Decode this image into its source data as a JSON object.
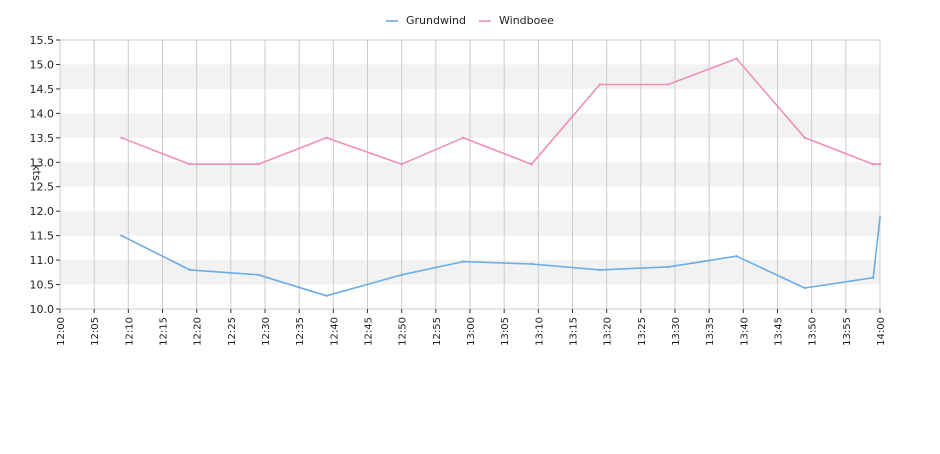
{
  "chart_data": {
    "type": "line",
    "ylabel": "kts",
    "xlabel": "",
    "title": "",
    "legend_position": "top-center",
    "grid": true,
    "ylim": [
      10.0,
      15.5
    ],
    "xlim": [
      "12:00",
      "14:00"
    ],
    "x_ticks": [
      "12:00",
      "12:05",
      "12:10",
      "12:15",
      "12:20",
      "12:25",
      "12:30",
      "12:35",
      "12:40",
      "12:45",
      "12:50",
      "12:55",
      "13:00",
      "13:05",
      "13:10",
      "13:15",
      "13:20",
      "13:25",
      "13:30",
      "13:35",
      "13:40",
      "13:45",
      "13:50",
      "13:55",
      "14:00"
    ],
    "y_ticks": [
      "10.0",
      "10.5",
      "11.0",
      "11.5",
      "12.0",
      "12.5",
      "13.0",
      "13.5",
      "14.0",
      "14.5",
      "15.0",
      "15.5"
    ],
    "band_color": "#f2f2f2",
    "grid_color": "#cccccc",
    "series": [
      {
        "name": "Grundwind",
        "color": "#6aaee8",
        "points": [
          [
            "12:09",
            11.5
          ],
          [
            "12:19",
            10.8
          ],
          [
            "12:29",
            10.7
          ],
          [
            "12:39",
            10.27
          ],
          [
            "12:50",
            10.7
          ],
          [
            "12:59",
            10.97
          ],
          [
            "13:09",
            10.92
          ],
          [
            "13:19",
            10.8
          ],
          [
            "13:29",
            10.86
          ],
          [
            "13:39",
            11.08
          ],
          [
            "13:49",
            10.43
          ],
          [
            "13:59",
            10.64
          ],
          [
            "14:00",
            11.87
          ]
        ]
      },
      {
        "name": "Windboee",
        "color": "#ee8fbc",
        "points": [
          [
            "12:09",
            13.5
          ],
          [
            "12:19",
            12.96
          ],
          [
            "12:29",
            12.96
          ],
          [
            "12:39",
            13.5
          ],
          [
            "12:50",
            12.96
          ],
          [
            "12:59",
            13.5
          ],
          [
            "13:09",
            12.96
          ],
          [
            "13:19",
            14.59
          ],
          [
            "13:29",
            14.59
          ],
          [
            "13:39",
            15.12
          ],
          [
            "13:49",
            13.5
          ],
          [
            "13:59",
            12.96
          ],
          [
            "14:00",
            12.96
          ]
        ]
      }
    ]
  }
}
